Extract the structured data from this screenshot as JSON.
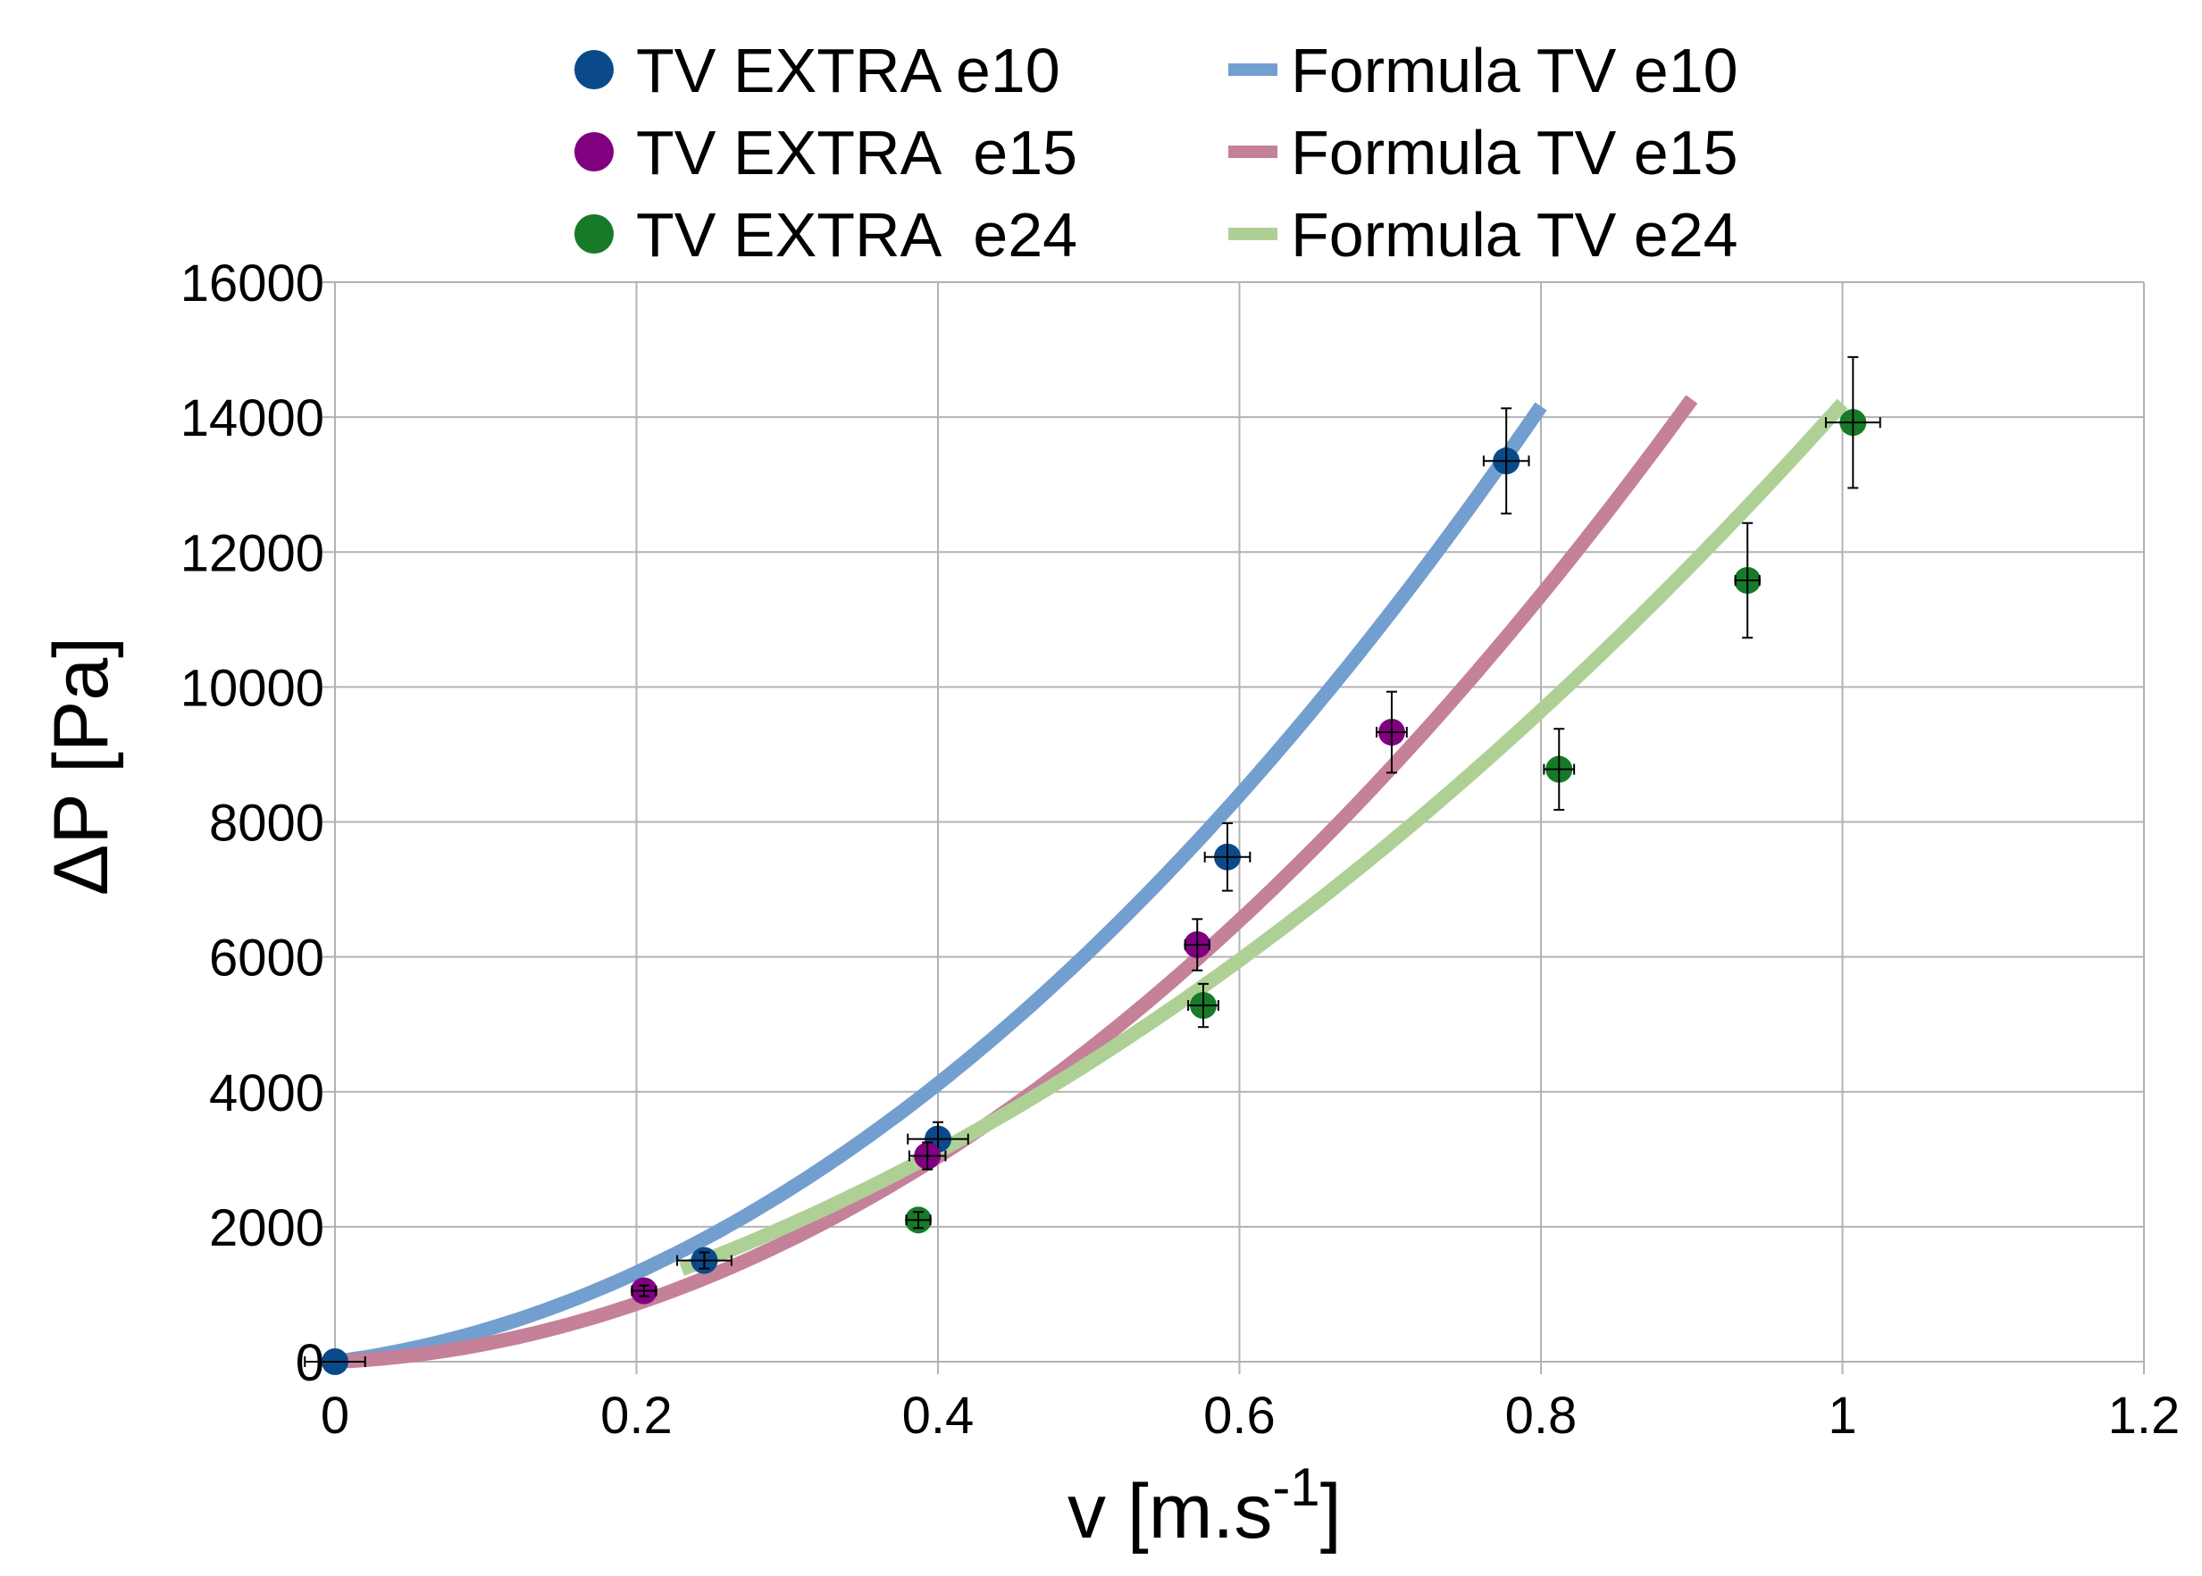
{
  "chart_data": {
    "type": "scatter",
    "title": "",
    "xlabel": "v [m.s",
    "xlabel_superscript": "-1",
    "xlabel_suffix": "]",
    "ylabel": "ΔP [Pa]",
    "xlim": [
      0,
      1.2
    ],
    "ylim": [
      0,
      16000
    ],
    "xticks": [
      0,
      0.2,
      0.4,
      0.6,
      0.8,
      1,
      1.2
    ],
    "xtick_labels": [
      "0",
      "0.2",
      "0.4",
      "0.6",
      "0.8",
      "1",
      "1.2"
    ],
    "yticks": [
      0,
      2000,
      4000,
      6000,
      8000,
      10000,
      12000,
      14000,
      16000
    ],
    "ytick_labels": [
      "0",
      "2000",
      "4000",
      "6000",
      "8000",
      "10000",
      "12000",
      "14000",
      "16000"
    ],
    "grid": true,
    "legend_position": "top",
    "series": [
      {
        "name": "TV EXTRA e10",
        "kind": "points",
        "color": "#0a4a8a",
        "points": [
          {
            "x": 0.0,
            "y": 0,
            "xerr": 0.02,
            "yerr": 0
          },
          {
            "x": 0.245,
            "y": 1500,
            "xerr": 0.018,
            "yerr": 120
          },
          {
            "x": 0.4,
            "y": 3300,
            "xerr": 0.02,
            "yerr": 250
          },
          {
            "x": 0.592,
            "y": 7480,
            "xerr": 0.015,
            "yerr": 500
          },
          {
            "x": 0.777,
            "y": 13350,
            "xerr": 0.015,
            "yerr": 780
          }
        ]
      },
      {
        "name": "TV EXTRA  e15",
        "kind": "points",
        "color": "#800080",
        "points": [
          {
            "x": 0.205,
            "y": 1050,
            "xerr": 0.008,
            "yerr": 80
          },
          {
            "x": 0.393,
            "y": 3050,
            "xerr": 0.012,
            "yerr": 200
          },
          {
            "x": 0.572,
            "y": 6180,
            "xerr": 0.008,
            "yerr": 380
          },
          {
            "x": 0.701,
            "y": 9330,
            "xerr": 0.01,
            "yerr": 600
          }
        ]
      },
      {
        "name": "TV EXTRA  e24",
        "kind": "points",
        "color": "#177a28",
        "points": [
          {
            "x": 0.387,
            "y": 2100,
            "xerr": 0.008,
            "yerr": 120
          },
          {
            "x": 0.576,
            "y": 5280,
            "xerr": 0.01,
            "yerr": 320
          },
          {
            "x": 0.812,
            "y": 8780,
            "xerr": 0.01,
            "yerr": 600
          },
          {
            "x": 0.937,
            "y": 11580,
            "xerr": 0.008,
            "yerr": 850
          },
          {
            "x": 1.007,
            "y": 13920,
            "xerr": 0.018,
            "yerr": 970
          }
        ]
      },
      {
        "name": "Formula TV e10",
        "kind": "curve",
        "color": "#729fcf",
        "coefficients": {
          "a": 18500,
          "b": 2900
        },
        "x_range": [
          0,
          0.8
        ]
      },
      {
        "name": "Formula TV e15",
        "kind": "curve",
        "color": "#c5809a",
        "coefficients": {
          "a": 16500,
          "b": 1000
        },
        "x_range": [
          0,
          0.9
        ]
      },
      {
        "name": "Formula TV e24",
        "kind": "curve",
        "color": "#afd095",
        "coefficients": {
          "a": 10700,
          "b": 3500
        },
        "x_range": [
          0.23,
          1.0
        ]
      }
    ]
  }
}
